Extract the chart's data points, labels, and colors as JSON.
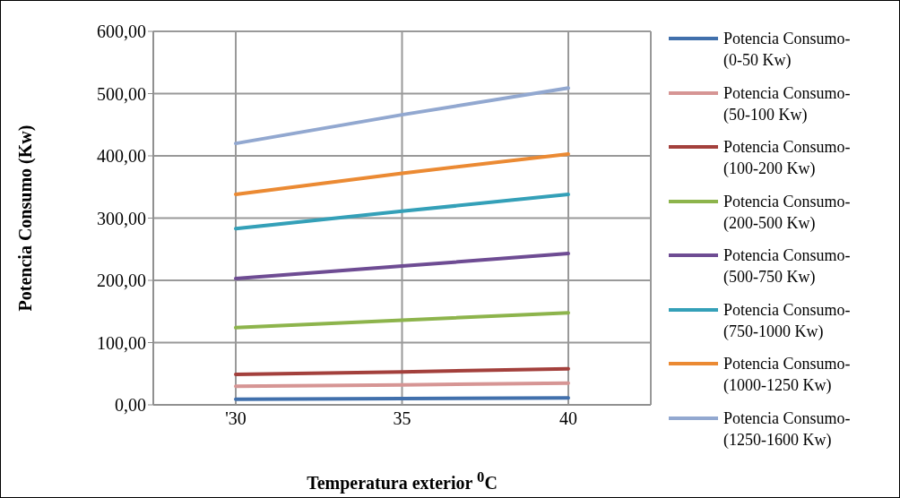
{
  "chart_data": {
    "type": "line",
    "xlabel": "Temperatura exterior $^{0}$C",
    "ylabel": "Potencia Consumo (Kw)",
    "categories": [
      "'30",
      "35",
      "40"
    ],
    "series": [
      {
        "name": "Potencia Consumo-(0-50 Kw)",
        "color": "#4170ac",
        "values": [
          9,
          10,
          11
        ]
      },
      {
        "name": "Potencia Consumo-(50-100 Kw)",
        "color": "#d69594",
        "values": [
          30,
          32,
          35
        ]
      },
      {
        "name": "Potencia Consumo-(100-200 Kw)",
        "color": "#a3403c",
        "values": [
          49,
          53,
          58
        ]
      },
      {
        "name": "Potencia Consumo-(200-500 Kw)",
        "color": "#8db44c",
        "values": [
          124,
          136,
          148
        ]
      },
      {
        "name": "Potencia Consumo-(500-750 Kw)",
        "color": "#6e4c93",
        "values": [
          203,
          223,
          243
        ]
      },
      {
        "name": "Potencia Consumo-(750-1000 Kw)",
        "color": "#34a0b8",
        "values": [
          283,
          311,
          338
        ]
      },
      {
        "name": "Potencia Consumo-(1000-1250 Kw)",
        "color": "#eb8a33",
        "values": [
          338,
          372,
          403
        ]
      },
      {
        "name": "Potencia Consumo-(1250-1600 Kw)",
        "color": "#92a8d0",
        "values": [
          420,
          466,
          509
        ]
      }
    ],
    "ylim": [
      0,
      600
    ],
    "yticks": [
      {
        "value": 0,
        "label": "0,00"
      },
      {
        "value": 100,
        "label": "100,00"
      },
      {
        "value": 200,
        "label": "200,00"
      },
      {
        "value": 300,
        "label": "300,00"
      },
      {
        "value": 400,
        "label": "400,00"
      },
      {
        "value": 500,
        "label": "500,00"
      },
      {
        "value": 600,
        "label": "600,00"
      }
    ],
    "grid": true,
    "legend": "right",
    "marker": "none",
    "line_style": "solid"
  }
}
